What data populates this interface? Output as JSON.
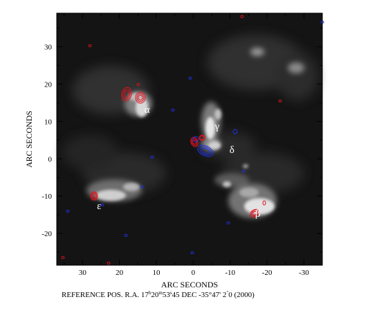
{
  "axes": {
    "xlabel": "ARC SECONDS",
    "ylabel": "ARC SECONDS",
    "x_ticks": [
      "30",
      "20",
      "10",
      "0",
      "-10",
      "-20",
      "-30"
    ],
    "y_ticks": [
      "30",
      "20",
      "10",
      "0",
      "-10",
      "-20"
    ],
    "xlim": [
      37,
      -35
    ],
    "ylim": [
      -28.5,
      39
    ],
    "x_inverted": true
  },
  "caption": {
    "prefix": "REFERENCE POS.  R.A. 17",
    "ra_h": "h",
    "ra_mid": "20",
    "ra_m": "m",
    "ra_end": "53",
    "ra_s": "s",
    "ra_frac": "45  DEC  -35°47' 2",
    "dec_s": "\"",
    "dec_end": "0  (2000)"
  },
  "sources": [
    {
      "label": "α",
      "x": 12.5,
      "y": 12.3
    },
    {
      "label": "β",
      "x": -17.5,
      "y": -15.5
    },
    {
      "label": "γ",
      "x": -6.5,
      "y": 7.8
    },
    {
      "label": "δ",
      "x": -10.5,
      "y": 1.5
    },
    {
      "label": "ε",
      "x": 25.5,
      "y": -13.5
    }
  ],
  "colors": {
    "background": "#ffffff",
    "image": "#141414",
    "red_contour": "#e0141e",
    "blue_contour": "#1e32e6",
    "label": "#ffffff"
  }
}
